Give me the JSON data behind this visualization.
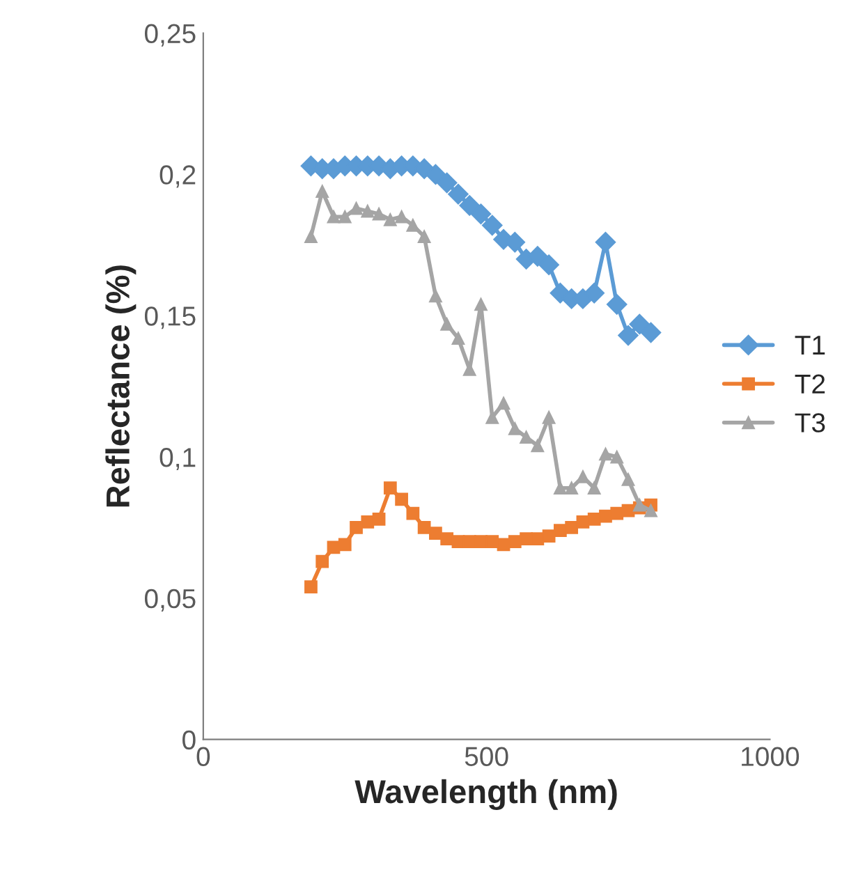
{
  "chart_data": {
    "type": "line",
    "xlabel": "Wavelength (nm)",
    "ylabel": "Reflectance (%)",
    "x": [
      190,
      210,
      230,
      250,
      270,
      290,
      310,
      330,
      350,
      370,
      390,
      410,
      430,
      450,
      470,
      490,
      510,
      530,
      550,
      570,
      590,
      610,
      630,
      650,
      670,
      690,
      710,
      730,
      750,
      770,
      790
    ],
    "series": [
      {
        "name": "T1",
        "color": "#5b9bd5",
        "marker": "diamond",
        "values": [
          0.203,
          0.202,
          0.202,
          0.203,
          0.203,
          0.203,
          0.203,
          0.202,
          0.203,
          0.203,
          0.202,
          0.2,
          0.197,
          0.193,
          0.189,
          0.186,
          0.182,
          0.177,
          0.176,
          0.17,
          0.171,
          0.168,
          0.158,
          0.156,
          0.156,
          0.158,
          0.176,
          0.154,
          0.143,
          0.147,
          0.144
        ]
      },
      {
        "name": "T2",
        "color": "#ed7d31",
        "marker": "square",
        "values": [
          0.054,
          0.063,
          0.068,
          0.069,
          0.075,
          0.077,
          0.078,
          0.089,
          0.085,
          0.08,
          0.075,
          0.073,
          0.071,
          0.07,
          0.07,
          0.07,
          0.07,
          0.069,
          0.07,
          0.071,
          0.071,
          0.072,
          0.074,
          0.075,
          0.077,
          0.078,
          0.079,
          0.08,
          0.081,
          0.082,
          0.083
        ]
      },
      {
        "name": "T3",
        "color": "#a5a5a5",
        "marker": "triangle",
        "values": [
          0.178,
          0.194,
          0.185,
          0.185,
          0.188,
          0.187,
          0.186,
          0.184,
          0.185,
          0.182,
          0.178,
          0.157,
          0.147,
          0.142,
          0.131,
          0.154,
          0.114,
          0.119,
          0.11,
          0.107,
          0.104,
          0.114,
          0.089,
          0.089,
          0.093,
          0.089,
          0.101,
          0.1,
          0.092,
          0.083,
          0.081
        ]
      }
    ],
    "xlim": [
      0,
      1000
    ],
    "xticks": [
      0,
      500,
      1000
    ],
    "ylim": [
      0,
      0.25
    ],
    "yticks": [
      0,
      {
        "value": 0.05,
        "label": "0,05"
      },
      {
        "value": 0.1,
        "label": "0,1"
      },
      {
        "value": 0.15,
        "label": "0,15"
      },
      {
        "value": 0.2,
        "label": "0,2"
      },
      {
        "value": 0.25,
        "label": "0,25"
      }
    ],
    "grid": false,
    "legend": "right",
    "line_style": "solid"
  }
}
